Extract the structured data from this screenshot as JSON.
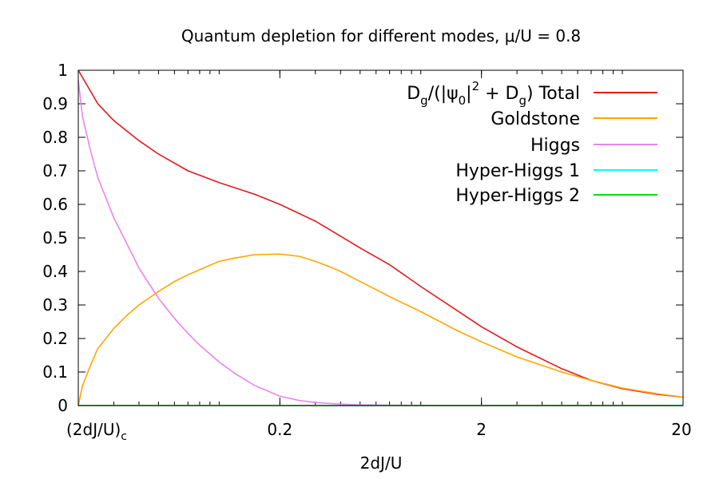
{
  "chart_data": {
    "type": "line",
    "title": "Quantum depletion for different modes, μ/U = 0.8",
    "xlabel": "2dJ/U",
    "ylabel": "",
    "x_scale": "log",
    "xlim": [
      0.02,
      20
    ],
    "ylim": [
      0,
      1
    ],
    "x_ticks": [
      {
        "value": 0.02,
        "label": "(2dJ/U)",
        "sub": "c"
      },
      {
        "value": 0.2,
        "label": "0.2"
      },
      {
        "value": 2,
        "label": "2"
      },
      {
        "value": 20,
        "label": "20"
      }
    ],
    "y_ticks": [
      "0",
      "0.1",
      "0.2",
      "0.3",
      "0.4",
      "0.5",
      "0.6",
      "0.7",
      "0.8",
      "0.9",
      "1"
    ],
    "legend_position": "top-right",
    "series": [
      {
        "name": "Dg/(|ψ0|^2 + Dg) Total",
        "legend": {
          "p1": "D",
          "s1": "g",
          "p2": "/(|ψ",
          "s2": "0",
          "p3": "|",
          "sup": "2",
          "p4": " + D",
          "s3": "g",
          "p5": ") Total"
        },
        "color": "#e31a1c",
        "x": [
          0.02,
          0.025,
          0.03,
          0.04,
          0.05,
          0.07,
          0.1,
          0.15,
          0.2,
          0.3,
          0.5,
          0.7,
          1.0,
          1.5,
          2.0,
          3.0,
          5.0,
          7.0,
          10.0,
          15.0,
          20.0
        ],
        "y": [
          1.0,
          0.9,
          0.85,
          0.79,
          0.75,
          0.7,
          0.665,
          0.63,
          0.6,
          0.55,
          0.47,
          0.42,
          0.355,
          0.285,
          0.235,
          0.175,
          0.11,
          0.075,
          0.05,
          0.033,
          0.025
        ]
      },
      {
        "name": "Goldstone",
        "color": "#ffa500",
        "x": [
          0.02,
          0.021,
          0.023,
          0.025,
          0.03,
          0.035,
          0.04,
          0.05,
          0.06,
          0.07,
          0.08,
          0.1,
          0.12,
          0.15,
          0.2,
          0.25,
          0.3,
          0.35,
          0.4,
          0.5,
          0.7,
          1.0,
          1.5,
          2.0,
          3.0,
          5.0,
          7.0,
          10.0,
          15.0,
          20.0
        ],
        "y": [
          0.0,
          0.06,
          0.12,
          0.17,
          0.23,
          0.27,
          0.3,
          0.34,
          0.37,
          0.39,
          0.405,
          0.43,
          0.44,
          0.45,
          0.452,
          0.445,
          0.43,
          0.415,
          0.4,
          0.37,
          0.325,
          0.28,
          0.225,
          0.19,
          0.145,
          0.1,
          0.075,
          0.052,
          0.035,
          0.025
        ]
      },
      {
        "name": "Higgs",
        "color": "#ee82ee",
        "x": [
          0.02,
          0.021,
          0.023,
          0.025,
          0.03,
          0.035,
          0.04,
          0.05,
          0.06,
          0.07,
          0.08,
          0.1,
          0.12,
          0.15,
          0.2,
          0.25,
          0.3,
          0.4,
          0.5,
          0.7,
          1.0,
          1.5,
          2.0,
          5.0,
          20.0
        ],
        "y": [
          0.97,
          0.86,
          0.76,
          0.68,
          0.56,
          0.48,
          0.41,
          0.32,
          0.26,
          0.215,
          0.18,
          0.13,
          0.095,
          0.06,
          0.028,
          0.015,
          0.009,
          0.004,
          0.002,
          0.001,
          0.0005,
          0.0002,
          0.0001,
          0.0,
          0.0
        ]
      },
      {
        "name": "Hyper-Higgs 1",
        "color": "#00ffff",
        "x": [
          0.02,
          20.0
        ],
        "y": [
          0.0,
          0.0
        ]
      },
      {
        "name": "Hyper-Higgs 2",
        "color": "#00e000",
        "x": [
          0.02,
          20.0
        ],
        "y": [
          0.0,
          0.0
        ]
      }
    ]
  }
}
